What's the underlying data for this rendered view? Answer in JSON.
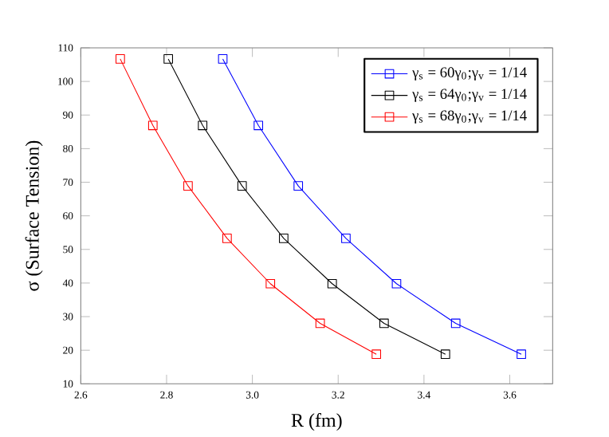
{
  "chart_data": {
    "type": "line",
    "xlabel": "R (fm)",
    "ylabel": "σ (Surface Tension)",
    "xlim": [
      2.6,
      3.7
    ],
    "xticks": [
      {
        "value": 2.6,
        "label": "2.6"
      },
      {
        "value": 2.8,
        "label": "2.8"
      },
      {
        "value": 3.0,
        "label": "3.0"
      },
      {
        "value": 3.2,
        "label": "3.2"
      },
      {
        "value": 3.4,
        "label": "3.4"
      },
      {
        "value": 3.6,
        "label": "3.6"
      }
    ],
    "ylim": [
      10,
      110
    ],
    "yticks": [
      10,
      20,
      30,
      40,
      50,
      60,
      70,
      80,
      90,
      100,
      110
    ],
    "legend": "top right",
    "marker": "square",
    "grid": false,
    "series": [
      {
        "name": "γ$_{s}$ = 60γ$_{0}$;γ$_{v}$ = 1/14",
        "color": "#0000ff",
        "x": [
          2.931,
          3.014,
          3.107,
          3.218,
          3.336,
          3.474,
          3.627
        ],
        "values": [
          106.7,
          86.9,
          68.9,
          53.3,
          39.8,
          28.0,
          18.8
        ]
      },
      {
        "name": "γ$_{s}$ = 64γ$_{0}$;γ$_{v}$ = 1/14",
        "color": "#000000",
        "x": [
          2.804,
          2.884,
          2.976,
          3.073,
          3.186,
          3.307,
          3.45
        ],
        "values": [
          106.7,
          86.9,
          68.9,
          53.3,
          39.8,
          28.0,
          18.8
        ]
      },
      {
        "name": "γ$_{s}$ = 68γ$_{0}$;γ$_{v}$ = 1/14",
        "color": "#ff0000",
        "x": [
          2.692,
          2.768,
          2.85,
          2.941,
          3.042,
          3.158,
          3.289
        ],
        "values": [
          106.7,
          86.9,
          68.9,
          53.3,
          39.8,
          28.0,
          18.8
        ]
      }
    ]
  }
}
